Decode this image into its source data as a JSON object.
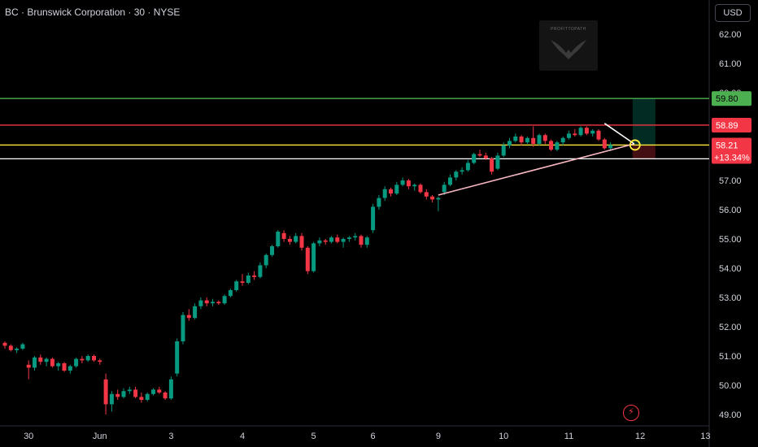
{
  "header": {
    "title": "BC · Brunswick Corporation · 30 · NYSE"
  },
  "currency_button": {
    "label": "USD"
  },
  "watermark": {
    "text": "PROFITTOPATH"
  },
  "chart_data": {
    "type": "candlestick",
    "title": "BC · Brunswick Corporation · 30 · NYSE",
    "ylim": [
      48.7,
      62.4
    ],
    "y_ticks": [
      "62.00",
      "61.00",
      "60.00",
      "59.00",
      "58.00",
      "57.00",
      "56.00",
      "55.00",
      "54.00",
      "53.00",
      "52.00",
      "51.00",
      "50.00",
      "49.00"
    ],
    "x_ticks": [
      "30",
      "Jun",
      "3",
      "4",
      "5",
      "6",
      "9",
      "10",
      "11",
      "12",
      "13"
    ],
    "grid": false,
    "ohlc": [
      [
        51.45,
        51.5,
        51.25,
        51.35
      ],
      [
        51.35,
        51.4,
        51.15,
        51.2
      ],
      [
        51.2,
        51.3,
        51.1,
        51.25
      ],
      [
        51.25,
        51.45,
        51.2,
        51.4
      ],
      [
        50.7,
        50.85,
        50.2,
        50.6
      ],
      [
        50.6,
        51.0,
        50.5,
        50.95
      ],
      [
        50.95,
        51.05,
        50.7,
        50.8
      ],
      [
        50.8,
        50.95,
        50.65,
        50.9
      ],
      [
        50.9,
        50.95,
        50.6,
        50.65
      ],
      [
        50.65,
        50.8,
        50.5,
        50.75
      ],
      [
        50.75,
        50.8,
        50.45,
        50.5
      ],
      [
        50.5,
        50.7,
        50.4,
        50.65
      ],
      [
        50.65,
        50.95,
        50.6,
        50.9
      ],
      [
        50.9,
        51.0,
        50.75,
        50.85
      ],
      [
        50.85,
        51.05,
        50.8,
        51.0
      ],
      [
        51.0,
        51.05,
        50.8,
        50.85
      ],
      [
        50.85,
        50.9,
        50.7,
        50.8
      ],
      [
        50.2,
        50.4,
        49.0,
        49.35
      ],
      [
        49.35,
        49.8,
        49.1,
        49.7
      ],
      [
        49.7,
        49.85,
        49.5,
        49.6
      ],
      [
        49.6,
        49.9,
        49.55,
        49.8
      ],
      [
        49.8,
        49.95,
        49.7,
        49.85
      ],
      [
        49.85,
        49.95,
        49.55,
        49.6
      ],
      [
        49.6,
        49.75,
        49.4,
        49.5
      ],
      [
        49.5,
        49.75,
        49.45,
        49.7
      ],
      [
        49.7,
        49.9,
        49.65,
        49.85
      ],
      [
        49.85,
        49.95,
        49.7,
        49.75
      ],
      [
        49.75,
        49.8,
        49.5,
        49.55
      ],
      [
        49.55,
        50.3,
        49.5,
        50.2
      ],
      [
        50.4,
        51.6,
        50.3,
        51.5
      ],
      [
        51.5,
        52.5,
        51.4,
        52.4
      ],
      [
        52.4,
        52.6,
        52.2,
        52.3
      ],
      [
        52.3,
        52.8,
        52.25,
        52.7
      ],
      [
        52.7,
        53.0,
        52.6,
        52.9
      ],
      [
        52.9,
        53.0,
        52.7,
        52.8
      ],
      [
        52.8,
        52.95,
        52.7,
        52.85
      ],
      [
        52.85,
        52.9,
        52.75,
        52.8
      ],
      [
        52.8,
        53.1,
        52.75,
        53.05
      ],
      [
        53.05,
        53.3,
        53.0,
        53.25
      ],
      [
        53.25,
        53.6,
        53.2,
        53.55
      ],
      [
        53.55,
        53.8,
        53.4,
        53.5
      ],
      [
        53.5,
        53.85,
        53.45,
        53.75
      ],
      [
        53.75,
        53.9,
        53.6,
        53.7
      ],
      [
        53.7,
        54.2,
        53.65,
        54.1
      ],
      [
        54.1,
        54.5,
        54.0,
        54.45
      ],
      [
        54.45,
        54.8,
        54.4,
        54.75
      ],
      [
        54.75,
        55.3,
        54.7,
        55.25
      ],
      [
        55.2,
        55.3,
        54.9,
        55.0
      ],
      [
        55.0,
        55.1,
        54.8,
        54.9
      ],
      [
        54.9,
        55.2,
        54.85,
        55.1
      ],
      [
        55.1,
        55.2,
        54.6,
        54.7
      ],
      [
        54.7,
        54.75,
        53.8,
        53.9
      ],
      [
        53.9,
        54.9,
        53.85,
        54.85
      ],
      [
        54.85,
        55.05,
        54.75,
        54.95
      ],
      [
        54.95,
        55.0,
        54.8,
        54.9
      ],
      [
        54.9,
        55.1,
        54.85,
        55.05
      ],
      [
        55.05,
        55.15,
        54.85,
        54.9
      ],
      [
        54.9,
        55.05,
        54.7,
        55.0
      ],
      [
        55.0,
        55.1,
        54.9,
        55.05
      ],
      [
        55.05,
        55.2,
        54.95,
        55.1
      ],
      [
        55.1,
        55.15,
        54.7,
        54.8
      ],
      [
        54.8,
        55.1,
        54.7,
        55.05
      ],
      [
        55.3,
        56.2,
        55.2,
        56.1
      ],
      [
        56.1,
        56.5,
        56.0,
        56.4
      ],
      [
        56.4,
        56.8,
        56.3,
        56.7
      ],
      [
        56.7,
        56.75,
        56.45,
        56.55
      ],
      [
        56.55,
        56.95,
        56.5,
        56.85
      ],
      [
        56.85,
        57.1,
        56.8,
        57.0
      ],
      [
        57.0,
        57.05,
        56.7,
        56.8
      ],
      [
        56.8,
        56.9,
        56.65,
        56.85
      ],
      [
        56.85,
        56.9,
        56.55,
        56.6
      ],
      [
        56.6,
        56.7,
        56.35,
        56.45
      ],
      [
        56.45,
        56.5,
        56.25,
        56.35
      ],
      [
        56.35,
        56.45,
        55.95,
        56.4
      ],
      [
        56.6,
        56.95,
        56.5,
        56.85
      ],
      [
        56.85,
        57.2,
        56.8,
        57.1
      ],
      [
        57.1,
        57.35,
        57.0,
        57.3
      ],
      [
        57.3,
        57.45,
        57.2,
        57.35
      ],
      [
        57.35,
        57.7,
        57.3,
        57.6
      ],
      [
        57.6,
        57.95,
        57.55,
        57.9
      ],
      [
        57.9,
        58.05,
        57.8,
        57.85
      ],
      [
        57.85,
        57.95,
        57.7,
        57.75
      ],
      [
        57.75,
        57.8,
        57.2,
        57.3
      ],
      [
        57.4,
        57.95,
        57.35,
        57.85
      ],
      [
        57.85,
        58.3,
        57.8,
        58.2
      ],
      [
        58.2,
        58.45,
        58.1,
        58.35
      ],
      [
        58.35,
        58.6,
        58.3,
        58.5
      ],
      [
        58.5,
        58.55,
        58.2,
        58.3
      ],
      [
        58.3,
        58.5,
        58.25,
        58.45
      ],
      [
        58.45,
        58.85,
        58.15,
        58.25
      ],
      [
        58.25,
        58.6,
        58.2,
        58.55
      ],
      [
        58.55,
        58.6,
        58.25,
        58.35
      ],
      [
        58.35,
        58.4,
        58.0,
        58.05
      ],
      [
        58.05,
        58.35,
        58.0,
        58.3
      ],
      [
        58.3,
        58.5,
        58.2,
        58.45
      ],
      [
        58.45,
        58.7,
        58.4,
        58.6
      ],
      [
        58.6,
        58.75,
        58.5,
        58.55
      ],
      [
        58.55,
        58.85,
        58.5,
        58.8
      ],
      [
        58.8,
        58.85,
        58.55,
        58.6
      ],
      [
        58.6,
        58.75,
        58.5,
        58.7
      ],
      [
        58.7,
        58.75,
        58.35,
        58.4
      ],
      [
        58.4,
        58.45,
        58.05,
        58.1
      ],
      [
        58.1,
        58.3,
        58.0,
        58.21
      ]
    ],
    "levels": [
      {
        "price": 59.8,
        "color": "#4caf50",
        "label": "59.80"
      },
      {
        "price": 58.89,
        "color": "#f23645",
        "label": "58.89"
      },
      {
        "price": 58.21,
        "color": "#ffeb3b",
        "label": "58.21",
        "change": "+13.34%"
      },
      {
        "price": 57.74,
        "color": "#ffffff"
      }
    ],
    "trendline_lower": {
      "from": [
        73,
        56.5
      ],
      "to": [
        106,
        58.25
      ]
    },
    "trendline_upper": {
      "from": [
        101,
        58.95
      ],
      "to": [
        106,
        58.25
      ]
    },
    "current_price": "58.21",
    "current_change": "+13.34%"
  },
  "colors": {
    "up": "#089981",
    "down": "#f23645",
    "axis_text": "#d1d4dc",
    "background": "#000000"
  }
}
